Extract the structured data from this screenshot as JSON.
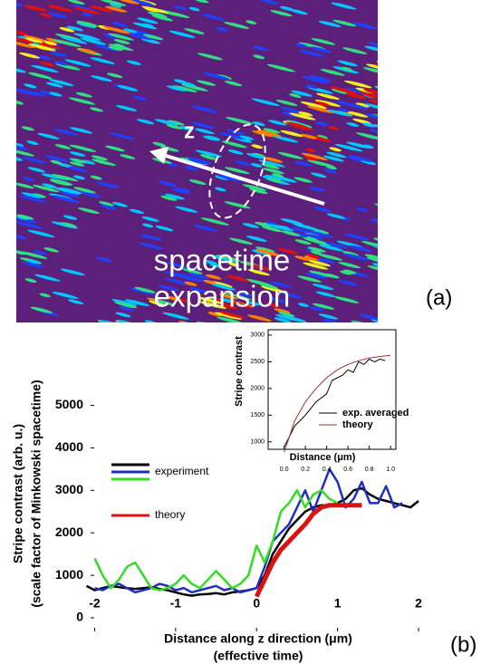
{
  "panel_a": {
    "axis_label": "z",
    "caption_line1": "spacetime",
    "caption_line2": "expansion",
    "panel_label": "(a)"
  },
  "panel_b_label": "(b)",
  "chart_data": [
    {
      "type": "line",
      "y_label_line1": "Stripe contrast (arb. u.)",
      "y_label_line2": "(scale factor of Minkowski spacetime)",
      "x_label_line1": "Distance along z direction (μm)",
      "x_label_line2": "(effective time)",
      "xlim": [
        -2.05,
        2.0
      ],
      "xticks": [
        -2,
        -1,
        0,
        1,
        2
      ],
      "ylim": [
        -320,
        5800
      ],
      "yticks": [
        0,
        1000,
        2000,
        3000,
        4000,
        5000
      ],
      "series": [
        {
          "name": "experiment",
          "color": "#000000",
          "width": 2.5,
          "x": [
            -2.1,
            -2.0,
            -1.9,
            -1.8,
            -1.7,
            -1.6,
            -1.5,
            -1.4,
            -1.3,
            -1.2,
            -1.1,
            -1.0,
            -0.9,
            -0.8,
            -0.7,
            -0.6,
            -0.5,
            -0.4,
            -0.3,
            -0.2,
            -0.1,
            0.0,
            0.1,
            0.2,
            0.3,
            0.4,
            0.5,
            0.6,
            0.7,
            0.8,
            0.9,
            1.0,
            1.1,
            1.2,
            1.3,
            1.4,
            1.5,
            1.6,
            1.7,
            1.8,
            1.9,
            2.0
          ],
          "values": [
            750,
            650,
            700,
            750,
            720,
            700,
            680,
            700,
            720,
            680,
            650,
            600,
            550,
            520,
            550,
            560,
            580,
            550,
            600,
            620,
            650,
            700,
            1000,
            1500,
            1800,
            2100,
            2300,
            2500,
            2600,
            2650,
            2650,
            2700,
            2800,
            3000,
            3050,
            2900,
            2800,
            2750,
            2700,
            2650,
            2600,
            2750
          ]
        },
        {
          "name": "experiment",
          "color": "#1f2fbf",
          "width": 2.5,
          "x": [
            -2.0,
            -1.9,
            -1.8,
            -1.7,
            -1.6,
            -1.5,
            -1.4,
            -1.3,
            -1.2,
            -1.1,
            -1.0,
            -0.9,
            -0.8,
            -0.7,
            -0.6,
            -0.5,
            -0.4,
            -0.3,
            -0.2,
            -0.1,
            0.0,
            0.1,
            0.2,
            0.3,
            0.4,
            0.5,
            0.6,
            0.7,
            0.8,
            0.9,
            1.0,
            1.1,
            1.2,
            1.3,
            1.4,
            1.5,
            1.6,
            1.7,
            1.8
          ],
          "values": [
            700,
            650,
            750,
            800,
            700,
            600,
            650,
            700,
            800,
            750,
            650,
            700,
            600,
            650,
            700,
            750,
            650,
            700,
            600,
            650,
            700,
            1200,
            1800,
            2000,
            2200,
            2600,
            3000,
            2500,
            3000,
            3500,
            3200,
            2600,
            2800,
            3200,
            2700,
            2700,
            3100,
            2600,
            2700
          ]
        },
        {
          "name": "experiment",
          "color": "#33dd22",
          "width": 2.5,
          "x": [
            -2.0,
            -1.9,
            -1.8,
            -1.7,
            -1.6,
            -1.5,
            -1.4,
            -1.3,
            -1.2,
            -1.1,
            -1.0,
            -0.9,
            -0.8,
            -0.7,
            -0.6,
            -0.5,
            -0.4,
            -0.3,
            -0.2,
            -0.1,
            0.0,
            0.1,
            0.2,
            0.3,
            0.4,
            0.5,
            0.6,
            0.7,
            0.8,
            0.9,
            1.0
          ],
          "values": [
            1400,
            1000,
            700,
            900,
            1200,
            1300,
            1000,
            700,
            650,
            700,
            800,
            1000,
            800,
            700,
            900,
            1100,
            900,
            700,
            800,
            1000,
            1700,
            1300,
            1800,
            2500,
            2700,
            3000,
            2600,
            2900,
            3000,
            2800,
            2700
          ]
        },
        {
          "name": "theory",
          "color": "#dd1111",
          "width": 5,
          "x": [
            0.0,
            0.1,
            0.2,
            0.3,
            0.4,
            0.5,
            0.6,
            0.7,
            0.8,
            0.9,
            1.0,
            1.1,
            1.2,
            1.3
          ],
          "values": [
            500,
            900,
            1300,
            1600,
            1800,
            2000,
            2200,
            2450,
            2600,
            2650,
            2650,
            2650,
            2650,
            2650
          ]
        }
      ]
    },
    {
      "type": "line",
      "y_label": "Stripe contrast",
      "x_label": "Distance (μm)",
      "xlim": [
        -0.15,
        1.05
      ],
      "xticks": [
        {
          "value": 0,
          "label": "0.0"
        },
        0.2,
        0.4,
        0.6,
        0.8,
        {
          "value": 1,
          "label": "1.0"
        }
      ],
      "ylim": [
        860,
        3100
      ],
      "yticks": [
        1000,
        1500,
        2000,
        2500,
        3000
      ],
      "series": [
        {
          "name": "exp. averaged",
          "color": "#000000",
          "width": 1,
          "x": [
            0,
            0.1,
            0.2,
            0.3,
            0.4,
            0.45,
            0.55,
            0.6,
            0.65,
            0.7,
            0.75,
            0.8,
            0.85,
            0.9,
            0.95
          ],
          "values": [
            900,
            1300,
            1500,
            1750,
            1900,
            2150,
            2250,
            2350,
            2300,
            2500,
            2450,
            2550,
            2500,
            2550,
            2520
          ]
        },
        {
          "name": "theory",
          "color": "#993333",
          "width": 1,
          "x": [
            0,
            0.1,
            0.2,
            0.3,
            0.4,
            0.5,
            0.6,
            0.7,
            0.8,
            0.9,
            1.0
          ],
          "values": [
            800,
            1400,
            1750,
            2000,
            2200,
            2350,
            2450,
            2520,
            2570,
            2600,
            2620
          ]
        }
      ]
    }
  ]
}
